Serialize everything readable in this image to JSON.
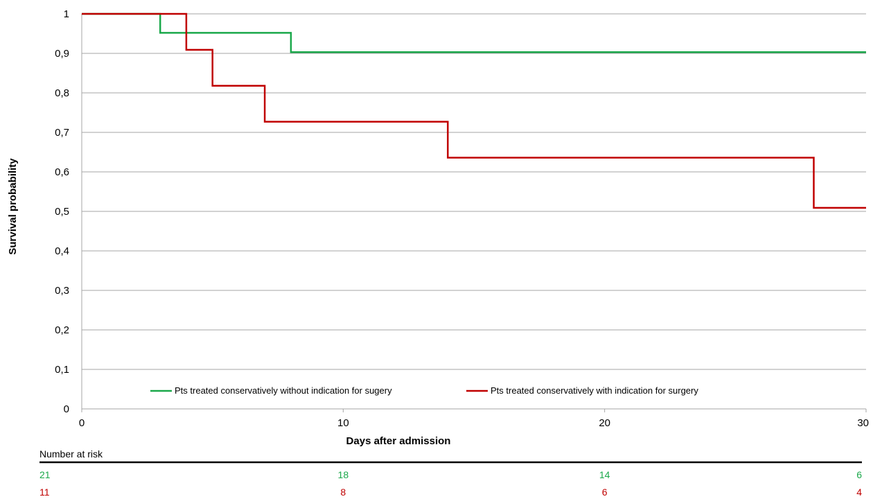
{
  "chart_data": {
    "type": "line",
    "step": true,
    "xlabel": "Days after admission",
    "ylabel": "Survival probability",
    "xlim": [
      0,
      30
    ],
    "ylim": [
      0,
      1
    ],
    "x_ticks": [
      0,
      10,
      20,
      30
    ],
    "y_ticks": [
      0,
      0.1,
      0.2,
      0.3,
      0.4,
      0.5,
      0.6,
      0.7,
      0.8,
      0.9,
      1
    ],
    "y_tick_labels": [
      "0",
      "0,1",
      "0,2",
      "0,3",
      "0,4",
      "0,5",
      "0,6",
      "0,7",
      "0,8",
      "0,9",
      "1"
    ],
    "grid": "horizontal",
    "legend_position": "bottom-inside",
    "series": [
      {
        "name": "Pts treated conservatively without indication for sugery",
        "color": "#1aa84a",
        "points": [
          [
            0,
            1
          ],
          [
            3,
            1
          ],
          [
            3,
            0.952
          ],
          [
            8,
            0.952
          ],
          [
            8,
            0.903
          ],
          [
            30,
            0.903
          ]
        ]
      },
      {
        "name": "Pts treated conservatively with indication for surgery",
        "color": "#c00000",
        "points": [
          [
            0,
            1
          ],
          [
            4,
            1
          ],
          [
            4,
            0.909
          ],
          [
            5,
            0.909
          ],
          [
            5,
            0.818
          ],
          [
            7,
            0.818
          ],
          [
            7,
            0.727
          ],
          [
            14,
            0.727
          ],
          [
            14,
            0.636
          ],
          [
            28,
            0.636
          ],
          [
            28,
            0.509
          ],
          [
            30,
            0.509
          ]
        ]
      }
    ],
    "risk_table": {
      "title": "Number at risk",
      "x": [
        0,
        10,
        20,
        30
      ],
      "rows": [
        {
          "color": "#1aa84a",
          "values": [
            "21",
            "18",
            "14",
            "6"
          ]
        },
        {
          "color": "#c00000",
          "values": [
            "11",
            "8",
            "6",
            "4"
          ]
        }
      ]
    }
  }
}
